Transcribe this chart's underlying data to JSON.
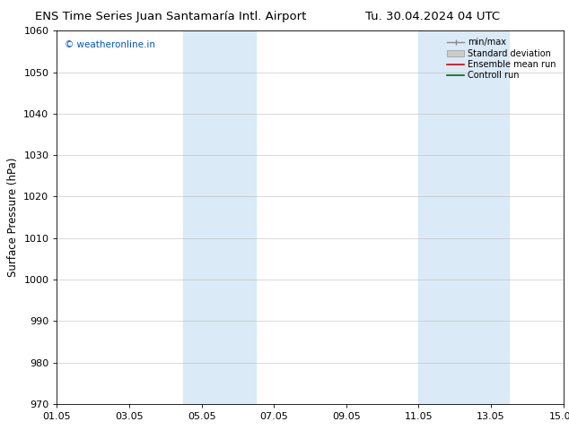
{
  "title_left": "ENS Time Series Juan Santamaría Intl. Airport",
  "title_right": "Tu. 30.04.2024 04 UTC",
  "ylabel": "Surface Pressure (hPa)",
  "ylim": [
    970,
    1060
  ],
  "yticks": [
    970,
    980,
    990,
    1000,
    1010,
    1020,
    1030,
    1040,
    1050,
    1060
  ],
  "xtick_labels": [
    "01.05",
    "03.05",
    "05.05",
    "07.05",
    "09.05",
    "11.05",
    "13.05",
    "15.05"
  ],
  "xtick_positions": [
    0,
    2,
    4,
    6,
    8,
    10,
    12,
    14
  ],
  "xlim": [
    0,
    14
  ],
  "shade_bands": [
    {
      "x_start": 3.5,
      "x_end": 5.5,
      "color": "#daeaf6"
    },
    {
      "x_start": 10.0,
      "x_end": 12.5,
      "color": "#daeaf6"
    }
  ],
  "watermark_text": "© weatheronline.in",
  "watermark_color": "#0055cc",
  "background_color": "#ffffff",
  "grid_color": "#bbbbbb",
  "title_fontsize": 9.5,
  "ylabel_fontsize": 8.5,
  "tick_fontsize": 8,
  "legend_fontsize": 7
}
